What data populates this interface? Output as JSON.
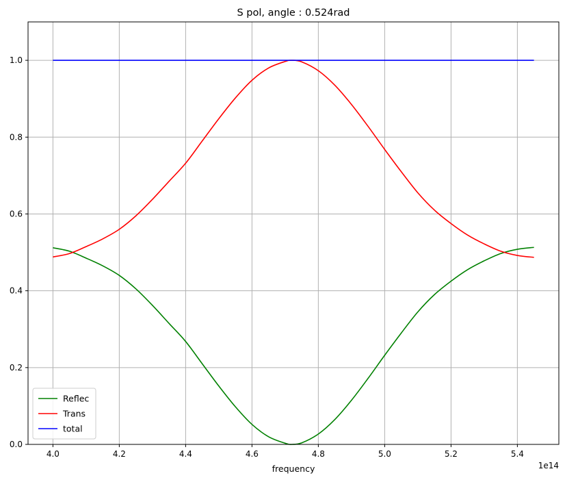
{
  "chart_data": {
    "type": "line",
    "title": "S pol, angle : 0.524rad",
    "xlabel": "frequency",
    "ylabel": "",
    "x_offset_text": "1e14",
    "xlim": [
      3.925,
      5.525
    ],
    "ylim": [
      0.0,
      1.1
    ],
    "x_ticks": [
      4.0,
      4.2,
      4.4,
      4.6,
      4.8,
      5.0,
      5.2,
      5.4
    ],
    "x_tick_labels": [
      "4.0",
      "4.2",
      "4.4",
      "4.6",
      "4.8",
      "5.0",
      "5.2",
      "5.4"
    ],
    "y_ticks": [
      0.0,
      0.2,
      0.4,
      0.6,
      0.8,
      1.0
    ],
    "y_tick_labels": [
      "0.0",
      "0.2",
      "0.4",
      "0.6",
      "0.8",
      "1.0"
    ],
    "grid": true,
    "legend_position": "bottom-left",
    "x": [
      4.0,
      4.05,
      4.1,
      4.15,
      4.2,
      4.25,
      4.3,
      4.35,
      4.4,
      4.45,
      4.5,
      4.55,
      4.6,
      4.65,
      4.7,
      4.72,
      4.75,
      4.8,
      4.85,
      4.9,
      4.95,
      5.0,
      5.05,
      5.1,
      5.15,
      5.2,
      5.25,
      5.3,
      5.35,
      5.4,
      5.45
    ],
    "series": [
      {
        "name": "Reflec",
        "color": "#008000",
        "values": [
          0.512,
          0.503,
          0.485,
          0.465,
          0.44,
          0.405,
          0.362,
          0.315,
          0.268,
          0.21,
          0.152,
          0.098,
          0.052,
          0.02,
          0.003,
          0.0,
          0.004,
          0.027,
          0.065,
          0.115,
          0.172,
          0.232,
          0.29,
          0.345,
          0.39,
          0.425,
          0.455,
          0.478,
          0.497,
          0.508,
          0.513
        ]
      },
      {
        "name": "Trans",
        "color": "#ff0000",
        "values": [
          0.488,
          0.497,
          0.515,
          0.535,
          0.56,
          0.595,
          0.638,
          0.685,
          0.732,
          0.79,
          0.848,
          0.902,
          0.948,
          0.98,
          0.997,
          1.0,
          0.996,
          0.973,
          0.935,
          0.885,
          0.828,
          0.768,
          0.71,
          0.655,
          0.61,
          0.575,
          0.545,
          0.522,
          0.503,
          0.492,
          0.487
        ]
      },
      {
        "name": "total",
        "color": "#0000ff",
        "values": [
          1.0,
          1.0,
          1.0,
          1.0,
          1.0,
          1.0,
          1.0,
          1.0,
          1.0,
          1.0,
          1.0,
          1.0,
          1.0,
          1.0,
          1.0,
          1.0,
          1.0,
          1.0,
          1.0,
          1.0,
          1.0,
          1.0,
          1.0,
          1.0,
          1.0,
          1.0,
          1.0,
          1.0,
          1.0,
          1.0,
          1.0
        ]
      }
    ]
  }
}
